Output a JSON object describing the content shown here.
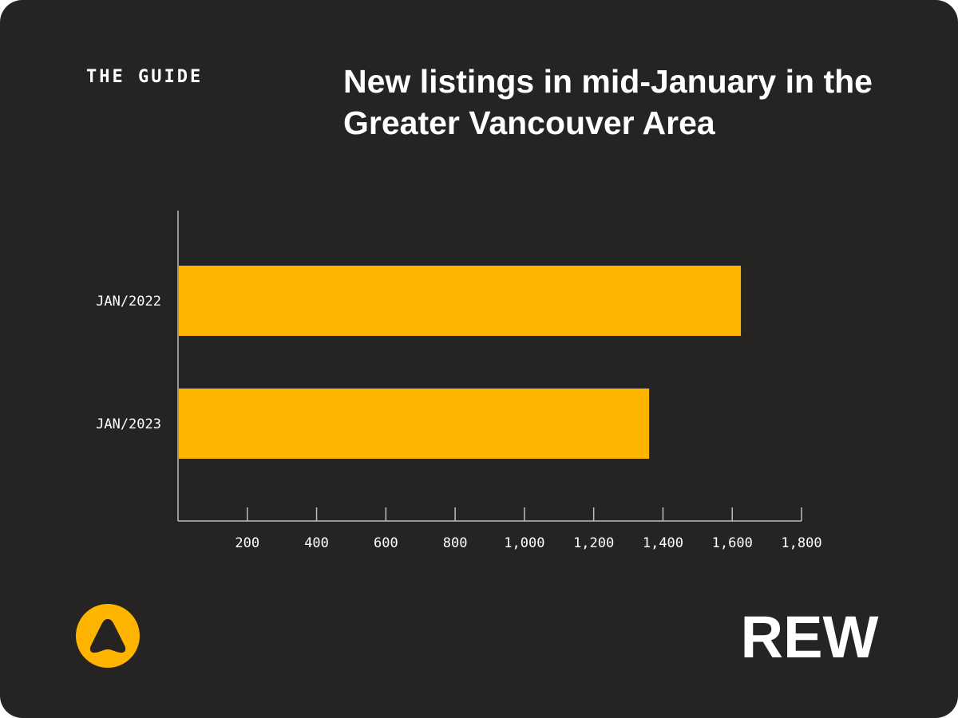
{
  "header": {
    "kicker": "THE GUIDE",
    "title": "New listings in mid-January in the Greater Vancouver Area"
  },
  "brand": {
    "wordmark": "REW",
    "accent_color": "#FFB400",
    "background_color": "#252423",
    "icon": "rew-triangle-logo-icon"
  },
  "chart_data": {
    "type": "bar",
    "orientation": "horizontal",
    "title": "New listings in mid-January in the Greater Vancouver Area",
    "xlabel": "",
    "ylabel": "",
    "categories": [
      "JAN/2022",
      "JAN/2023"
    ],
    "values": [
      1625,
      1360
    ],
    "xlim": [
      0,
      1800
    ],
    "x_ticks": [
      200,
      400,
      600,
      800,
      1000,
      1200,
      1400,
      1600,
      1800
    ],
    "x_tick_labels": [
      "200",
      "400",
      "600",
      "800",
      "1,000",
      "1,200",
      "1,400",
      "1,600",
      "1,800"
    ],
    "bar_color": "#FFB400",
    "grid": false,
    "legend": "none"
  }
}
